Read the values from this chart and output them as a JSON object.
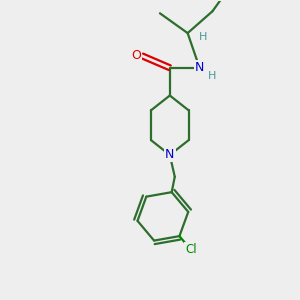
{
  "background_color": "#eeeeee",
  "bond_color": "#2d6e2d",
  "atom_colors": {
    "O": "#dd0000",
    "N": "#0000cc",
    "Cl": "#008800",
    "H": "#4a9898",
    "C": "#2d6e2d"
  },
  "figsize": [
    3.0,
    3.0
  ],
  "dpi": 100,
  "bond_lw": 1.6
}
